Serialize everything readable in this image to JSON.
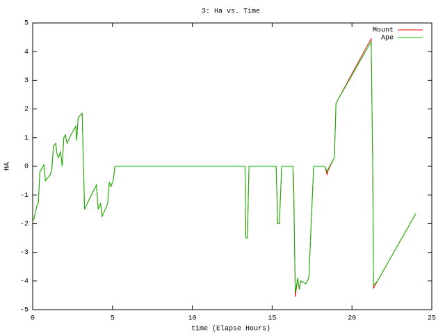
{
  "chart_data": {
    "type": "line",
    "title": "3: Ha vs. Time",
    "x_label": "time (Elapse Hours)",
    "y_label": "HA",
    "x": [
      0,
      0.09,
      0.26,
      0.35,
      0.45,
      0.55,
      0.7,
      0.8,
      1.1,
      1.2,
      1.3,
      1.45,
      1.5,
      1.6,
      1.75,
      1.85,
      1.95,
      2.05,
      2.15,
      2.4,
      2.7,
      2.75,
      2.85,
      3.1,
      3.25,
      3.5,
      4.0,
      4.1,
      4.25,
      4.35,
      4.7,
      4.8,
      4.9,
      5.05,
      5.15,
      13.3,
      13.35,
      13.45,
      13.55,
      15.25,
      15.35,
      15.45,
      15.6,
      16.3,
      16.35,
      16.45,
      16.6,
      16.7,
      16.8,
      17.1,
      17.3,
      17.6,
      18.3,
      18.45,
      18.5,
      18.9,
      19.0,
      21.2,
      21.3,
      21.35,
      21.6,
      24.0
    ],
    "series": [
      {
        "name": "Mount",
        "color": "#ff0000",
        "values": [
          -1.92,
          -1.82,
          -1.38,
          -1.3,
          -0.2,
          -0.1,
          0.05,
          -0.5,
          -0.3,
          -0.1,
          0.7,
          0.8,
          0.5,
          0.3,
          0.5,
          0,
          1.0,
          1.1,
          0.8,
          1.1,
          1.4,
          0.9,
          1.7,
          1.85,
          -1.5,
          -1.2,
          -0.65,
          -1.5,
          -1.3,
          -1.75,
          -1.3,
          -0.55,
          -0.7,
          -0.5,
          0,
          0,
          -2.5,
          -2.5,
          0,
          0,
          -2,
          -2,
          0,
          0,
          -0.6,
          -4.55,
          -3.9,
          -4.3,
          -4.0,
          -4.1,
          -3.9,
          0,
          0,
          -0.3,
          -0.15,
          0.3,
          2.2,
          4.45,
          0,
          -4.25,
          -4.0,
          -1.65
        ]
      },
      {
        "name": "Ape",
        "color": "#00c000",
        "values": [
          -1.92,
          -1.82,
          -1.38,
          -1.3,
          -0.2,
          -0.1,
          0.05,
          -0.5,
          -0.3,
          -0.1,
          0.7,
          0.8,
          0.5,
          0.3,
          0.5,
          0,
          1.0,
          1.1,
          0.8,
          1.1,
          1.4,
          0.9,
          1.7,
          1.85,
          -1.5,
          -1.2,
          -0.65,
          -1.5,
          -1.3,
          -1.75,
          -1.3,
          -0.55,
          -0.7,
          -0.5,
          0,
          0,
          -2.5,
          -2.5,
          0,
          0,
          -2,
          -2,
          0,
          0,
          -1.0,
          -4.4,
          -3.9,
          -4.3,
          -4.0,
          -4.1,
          -3.9,
          0,
          0,
          -0.2,
          -0.1,
          0.3,
          2.2,
          4.35,
          0.2,
          -4.15,
          -4.0,
          -1.65
        ]
      }
    ],
    "xlim": [
      0,
      25
    ],
    "xticks": [
      0,
      5,
      10,
      15,
      20,
      25
    ],
    "ylim": [
      -5,
      5
    ],
    "yticks": [
      -5,
      -4,
      -3,
      -2,
      -1,
      0,
      1,
      2,
      3,
      4,
      5
    ],
    "legend": "top-right",
    "grid": false
  }
}
